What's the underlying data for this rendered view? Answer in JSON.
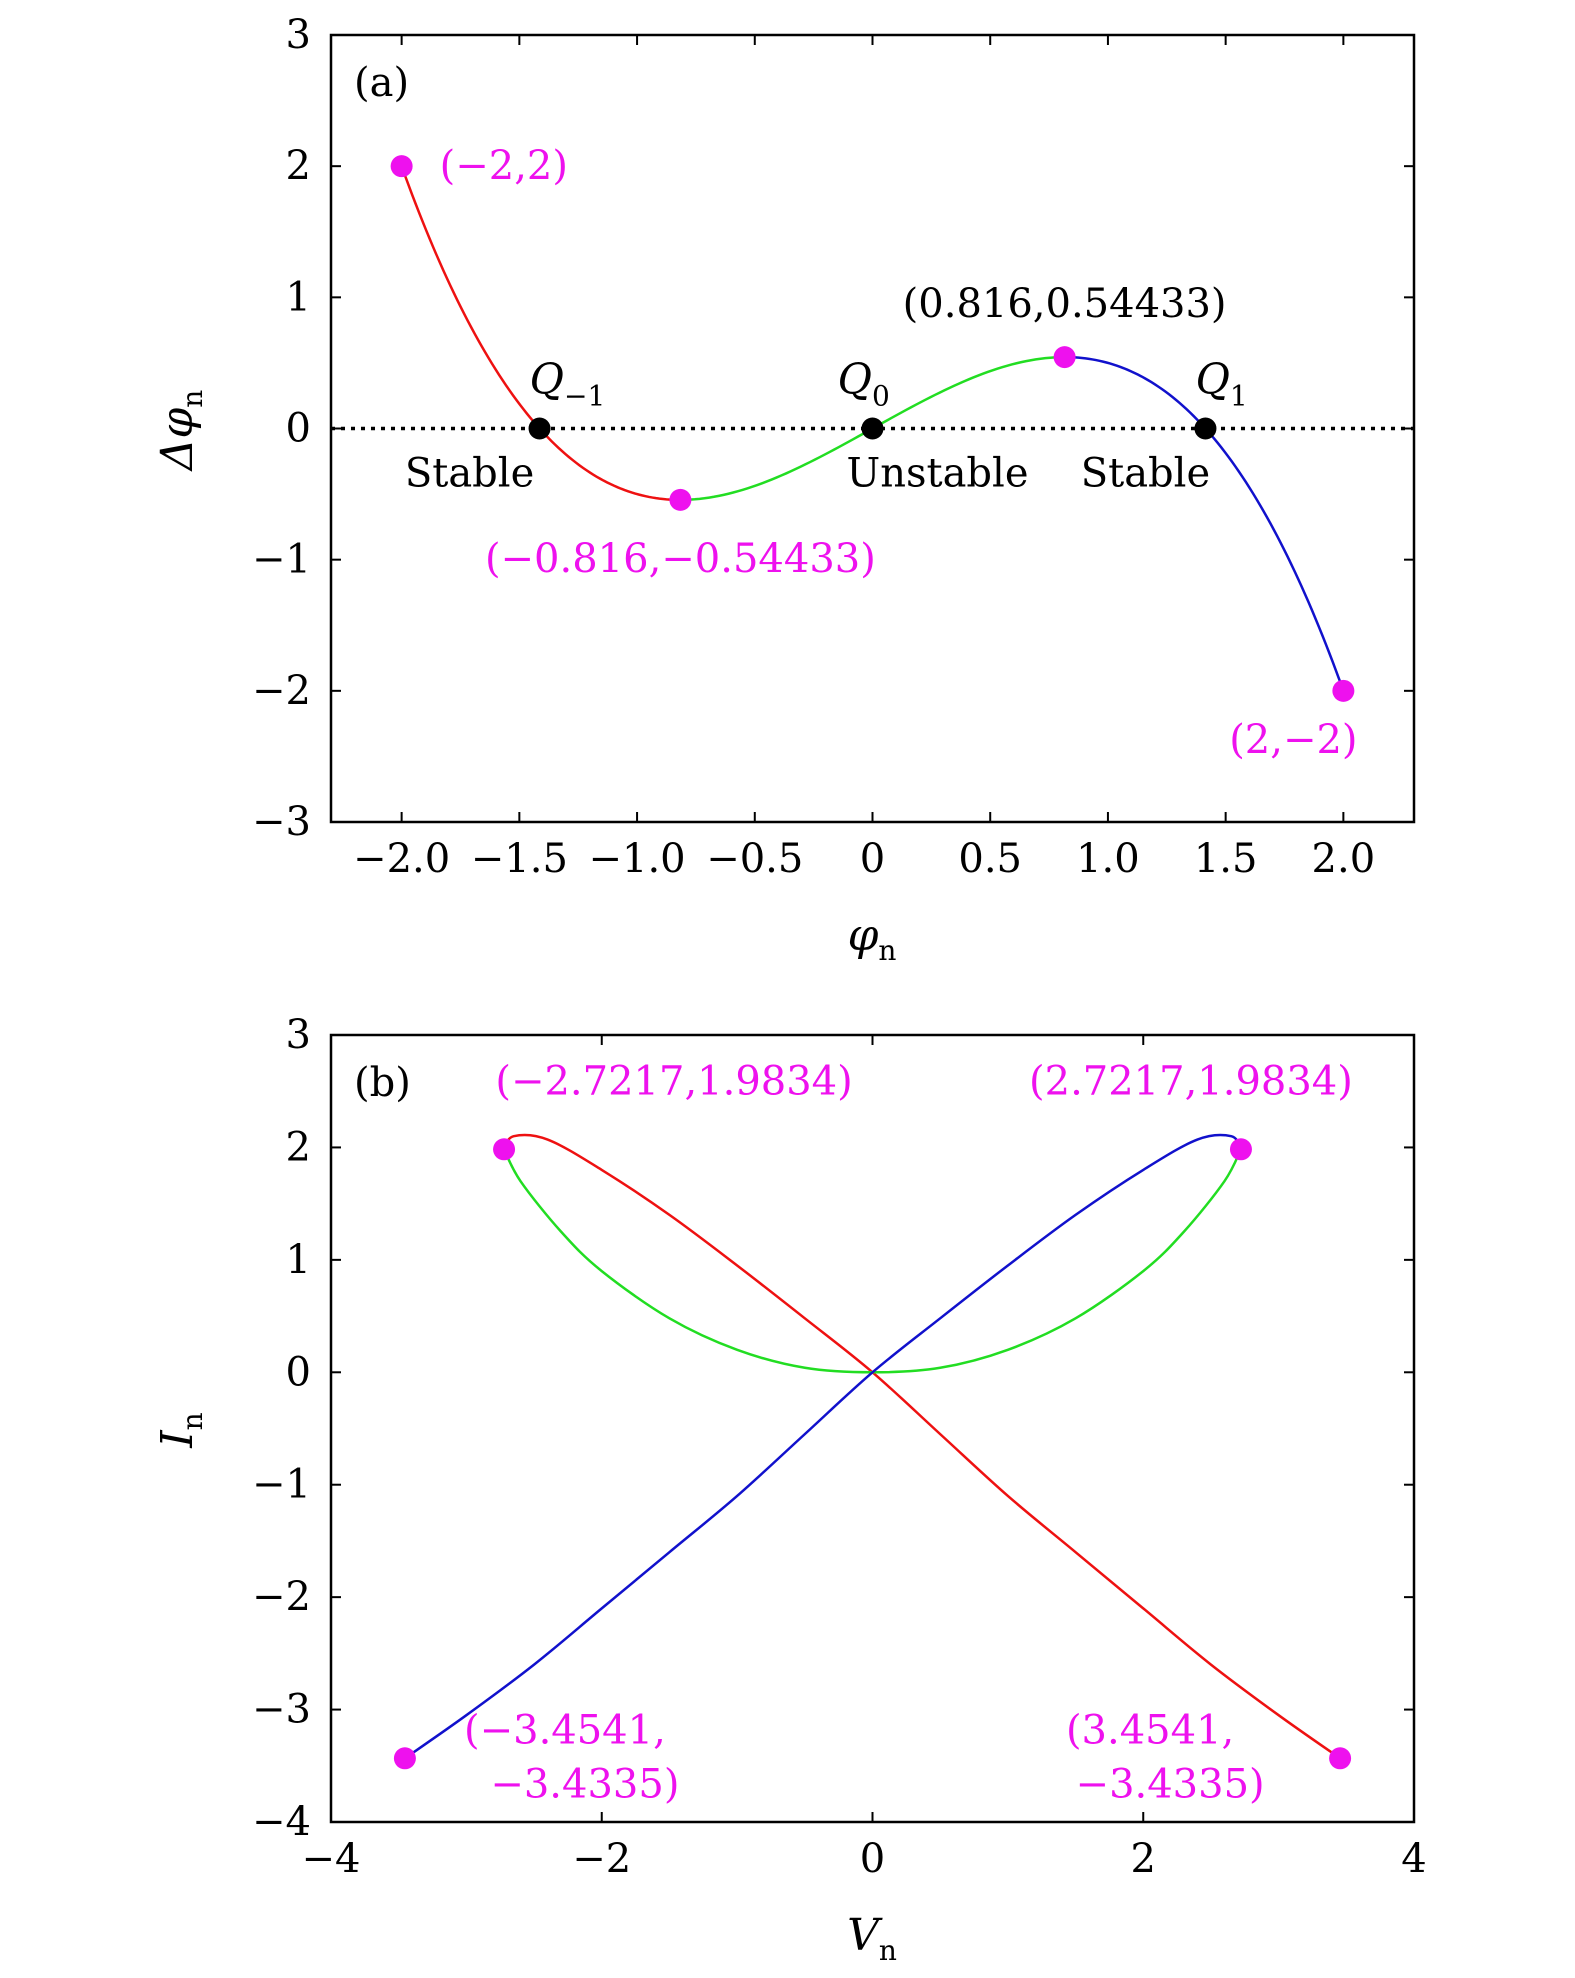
{
  "chart_data": [
    {
      "type": "line",
      "panel_label": "(a)",
      "xlabel": "φ",
      "xlabel_sub": "n",
      "ylabel": "Δφ",
      "ylabel_sub": "n",
      "xlim": [
        -2.3,
        2.3
      ],
      "ylim": [
        -3,
        3
      ],
      "xticks": [
        -2.0,
        -1.5,
        -1.0,
        -0.5,
        0,
        0.5,
        1.0,
        1.5,
        2.0
      ],
      "xtick_labels": [
        "−2.0",
        "−1.5",
        "−1.0",
        "−0.5",
        "0",
        "0.5",
        "1.0",
        "1.5",
        "2.0"
      ],
      "yticks": [
        -3,
        -2,
        -1,
        0,
        1,
        2,
        3
      ],
      "ytick_labels": [
        "−3",
        "−2",
        "−1",
        "0",
        "1",
        "2",
        "3"
      ],
      "function": "Δφ = φ − φ³/2",
      "series": [
        {
          "color": "#ee1111",
          "x_range": [
            -2.0,
            -0.816
          ]
        },
        {
          "color": "#22dd22",
          "x_range": [
            -0.816,
            0.816
          ]
        },
        {
          "color": "#1111cc",
          "x_range": [
            0.816,
            2.0
          ]
        }
      ],
      "baseline": {
        "y": 0,
        "style": "dotted"
      },
      "extrema_points": [
        {
          "x": -2.0,
          "y": 2.0,
          "label": "(−2,2)",
          "color": "#ee11ee"
        },
        {
          "x": -0.816,
          "y": -0.54433,
          "label": "(−0.816,−0.54433)",
          "color": "#ee11ee"
        },
        {
          "x": 0.816,
          "y": 0.54433,
          "label": "(0.816,0.54433)",
          "color": "#000000"
        },
        {
          "x": 2.0,
          "y": -2.0,
          "label": "(2,−2)",
          "color": "#ee11ee"
        }
      ],
      "equilibria": [
        {
          "x": -1.4142,
          "y": 0,
          "name": "Q",
          "sub": "−1",
          "stability": "Stable"
        },
        {
          "x": 0,
          "y": 0,
          "name": "Q",
          "sub": "0",
          "stability": "Unstable"
        },
        {
          "x": 1.4142,
          "y": 0,
          "name": "Q",
          "sub": "1",
          "stability": "Stable"
        }
      ]
    },
    {
      "type": "line",
      "panel_label": "(b)",
      "xlabel": "V",
      "xlabel_sub": "n",
      "ylabel": "I",
      "ylabel_sub": "n",
      "xlim": [
        -4,
        4
      ],
      "ylim": [
        -4,
        3
      ],
      "xticks": [
        -4,
        -2,
        0,
        2,
        4
      ],
      "xtick_labels": [
        "−4",
        "−2",
        "0",
        "2",
        "4"
      ],
      "yticks": [
        -4,
        -3,
        -2,
        -1,
        0,
        1,
        2,
        3
      ],
      "ytick_labels": [
        "−4",
        "−3",
        "−2",
        "−1",
        "0",
        "1",
        "2",
        "3"
      ],
      "series": [
        {
          "color": "#ee1111",
          "x": [
            -2.7217,
            -2.65,
            -2.4,
            -2.0,
            -1.5,
            -1.0,
            -0.5,
            0,
            0.5,
            1.0,
            1.5,
            2.0,
            2.5,
            3.0,
            3.4541
          ],
          "y": [
            1.9834,
            2.1,
            2.07,
            1.8,
            1.4,
            0.95,
            0.48,
            0,
            -0.55,
            -1.1,
            -1.6,
            -2.1,
            -2.6,
            -3.05,
            -3.4335
          ]
        },
        {
          "color": "#22dd22",
          "x": [
            -2.7217,
            -2.6,
            -2.3,
            -2.0,
            -1.5,
            -1.0,
            -0.5,
            0,
            0.5,
            1.0,
            1.5,
            2.0,
            2.3,
            2.6,
            2.7217
          ],
          "y": [
            1.9834,
            1.7,
            1.25,
            0.9,
            0.48,
            0.2,
            0.04,
            0,
            0.04,
            0.2,
            0.48,
            0.9,
            1.25,
            1.7,
            1.9834
          ]
        },
        {
          "color": "#1111cc",
          "x": [
            -3.4541,
            -3.0,
            -2.5,
            -2.0,
            -1.5,
            -1.0,
            -0.5,
            0,
            0.5,
            1.0,
            1.5,
            2.0,
            2.4,
            2.65,
            2.7217
          ],
          "y": [
            -3.4335,
            -3.05,
            -2.6,
            -2.1,
            -1.6,
            -1.1,
            -0.55,
            0,
            0.48,
            0.95,
            1.4,
            1.8,
            2.07,
            2.1,
            1.9834
          ]
        }
      ],
      "extrema_points": [
        {
          "x": -2.7217,
          "y": 1.9834,
          "label": "(−2.7217,1.9834)",
          "color": "#ee11ee"
        },
        {
          "x": 2.7217,
          "y": 1.9834,
          "label": "(2.7217,1.9834)",
          "color": "#ee11ee"
        },
        {
          "x": -3.4541,
          "y": -3.4335,
          "label_line1": "(−3.4541,",
          "label_line2": "−3.4335)",
          "color": "#ee11ee"
        },
        {
          "x": 3.4541,
          "y": -3.4335,
          "label_line1": "(3.4541,",
          "label_line2": "−3.4335)",
          "color": "#ee11ee"
        }
      ]
    }
  ]
}
